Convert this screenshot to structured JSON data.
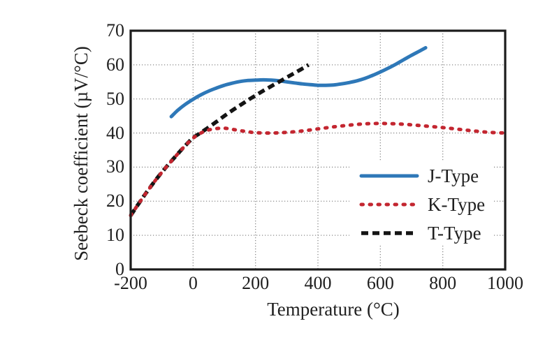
{
  "page": {
    "background": "#ffffff"
  },
  "chart_data": {
    "type": "line",
    "title": "",
    "xlabel": "Temperature (°C)",
    "ylabel": "Seebeck coefficient (µV/°C)",
    "xlim": [
      -200,
      1000
    ],
    "ylim": [
      0,
      70
    ],
    "xticks": [
      -200,
      0,
      200,
      400,
      600,
      800,
      1000
    ],
    "yticks": [
      0,
      10,
      20,
      30,
      40,
      50,
      60,
      70
    ],
    "grid": true,
    "grid_color": "#8a8a8a",
    "frame_color": "#1c1c1c",
    "text_color": "#1f1f1f",
    "legend_position": "inside-right-middle",
    "series": [
      {
        "name": "J-Type",
        "color": "#2e78b8",
        "style": "solid",
        "z": 1,
        "points": [
          [
            -70,
            44.8
          ],
          [
            -50,
            46.6
          ],
          [
            -25,
            48.4
          ],
          [
            0,
            49.9
          ],
          [
            25,
            51.2
          ],
          [
            50,
            52.3
          ],
          [
            75,
            53.2
          ],
          [
            100,
            54.0
          ],
          [
            125,
            54.6
          ],
          [
            150,
            55.1
          ],
          [
            175,
            55.4
          ],
          [
            200,
            55.5
          ],
          [
            225,
            55.6
          ],
          [
            250,
            55.5
          ],
          [
            275,
            55.3
          ],
          [
            300,
            55.0
          ],
          [
            325,
            54.7
          ],
          [
            350,
            54.4
          ],
          [
            375,
            54.2
          ],
          [
            400,
            54.0
          ],
          [
            425,
            54.0
          ],
          [
            450,
            54.1
          ],
          [
            475,
            54.4
          ],
          [
            500,
            54.8
          ],
          [
            525,
            55.3
          ],
          [
            550,
            56.0
          ],
          [
            575,
            56.9
          ],
          [
            600,
            57.9
          ],
          [
            625,
            59.0
          ],
          [
            650,
            60.2
          ],
          [
            675,
            61.5
          ],
          [
            700,
            62.8
          ],
          [
            725,
            64.0
          ],
          [
            745,
            65.0
          ]
        ]
      },
      {
        "name": "K-Type",
        "color": "#c32630",
        "style": "dotted",
        "z": 3,
        "points": [
          [
            -200,
            15.8
          ],
          [
            -175,
            19.2
          ],
          [
            -150,
            22.5
          ],
          [
            -125,
            25.6
          ],
          [
            -100,
            28.5
          ],
          [
            -75,
            31.2
          ],
          [
            -50,
            33.8
          ],
          [
            -25,
            36.3
          ],
          [
            0,
            38.5
          ],
          [
            25,
            40.0
          ],
          [
            50,
            40.9
          ],
          [
            75,
            41.3
          ],
          [
            100,
            41.4
          ],
          [
            125,
            41.1
          ],
          [
            150,
            40.7
          ],
          [
            175,
            40.4
          ],
          [
            200,
            40.1
          ],
          [
            250,
            40.0
          ],
          [
            300,
            40.2
          ],
          [
            350,
            40.6
          ],
          [
            400,
            41.2
          ],
          [
            450,
            41.8
          ],
          [
            500,
            42.3
          ],
          [
            550,
            42.7
          ],
          [
            600,
            42.8
          ],
          [
            650,
            42.7
          ],
          [
            700,
            42.4
          ],
          [
            750,
            42.0
          ],
          [
            800,
            41.6
          ],
          [
            850,
            41.1
          ],
          [
            900,
            40.6
          ],
          [
            950,
            40.2
          ],
          [
            1000,
            40.0
          ]
        ]
      },
      {
        "name": "T-Type",
        "color": "#141414",
        "style": "dashed",
        "z": 2,
        "points": [
          [
            -200,
            15.8
          ],
          [
            -175,
            19.2
          ],
          [
            -150,
            22.5
          ],
          [
            -125,
            25.6
          ],
          [
            -100,
            28.5
          ],
          [
            -75,
            31.2
          ],
          [
            -50,
            33.8
          ],
          [
            -25,
            36.3
          ],
          [
            0,
            38.6
          ],
          [
            25,
            40.1
          ],
          [
            50,
            41.7
          ],
          [
            75,
            43.3
          ],
          [
            100,
            45.0
          ],
          [
            125,
            46.6
          ],
          [
            150,
            48.1
          ],
          [
            175,
            49.6
          ],
          [
            200,
            51.0
          ],
          [
            225,
            52.4
          ],
          [
            250,
            53.7
          ],
          [
            275,
            55.0
          ],
          [
            300,
            56.3
          ],
          [
            325,
            57.6
          ],
          [
            350,
            58.9
          ],
          [
            370,
            60.0
          ]
        ]
      }
    ]
  }
}
